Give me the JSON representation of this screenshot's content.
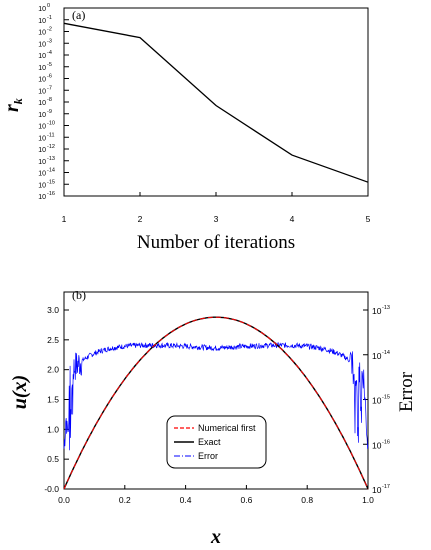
{
  "chart_data": [
    {
      "type": "line",
      "panel_label": "(a)",
      "x": [
        1,
        2,
        3,
        4,
        5
      ],
      "series": [
        {
          "values": [
            0.05,
            0.003,
            5e-09,
            3e-13,
            1.5e-15
          ],
          "color": "#000000"
        }
      ],
      "xlabel": "Number of iterations",
      "ylabel": "r",
      "ylabel_sub": "k",
      "xlim": [
        1,
        5
      ],
      "ylim_log10": [
        -16,
        0
      ],
      "yscale": "log",
      "xticks": [
        "1",
        "2",
        "3",
        "4",
        "5"
      ],
      "ytick_base": "10",
      "ytick_exponents": [
        "-16",
        "-15",
        "-14",
        "-13",
        "-12",
        "-11",
        "-10",
        "-9",
        "-8",
        "-7",
        "-6",
        "-5",
        "-4",
        "-3",
        "-2",
        "-1",
        "0"
      ]
    },
    {
      "type": "line",
      "panel_label": "(b)",
      "xlabel": "x",
      "ylabel": "u(x)",
      "ylabel_right": "Error",
      "xlim": [
        0,
        1
      ],
      "ylim": [
        0,
        3.0
      ],
      "xticks": [
        "0.0",
        "0.2",
        "0.4",
        "0.6",
        "0.8",
        "1.0"
      ],
      "yticks": [
        "-0.0",
        "0.5",
        "1.0",
        "1.5",
        "2.0",
        "2.5",
        "3.0"
      ],
      "yticks_right_base": "10",
      "yticks_right_exponents": [
        "-17",
        "-16",
        "-15",
        "-14",
        "-13"
      ],
      "y_right_log10": [
        -17,
        -13
      ],
      "exact_peak": 2.88,
      "error_plateau_log10": -13.85,
      "series": [
        {
          "name": "Numerical first",
          "color": "#ff0000",
          "style": "dashed"
        },
        {
          "name": "Exact",
          "color": "#000000",
          "style": "solid"
        },
        {
          "name": "Error",
          "color": "#0000ff",
          "style": "dash-dot"
        }
      ],
      "legend_placement": "bottom-center"
    }
  ]
}
